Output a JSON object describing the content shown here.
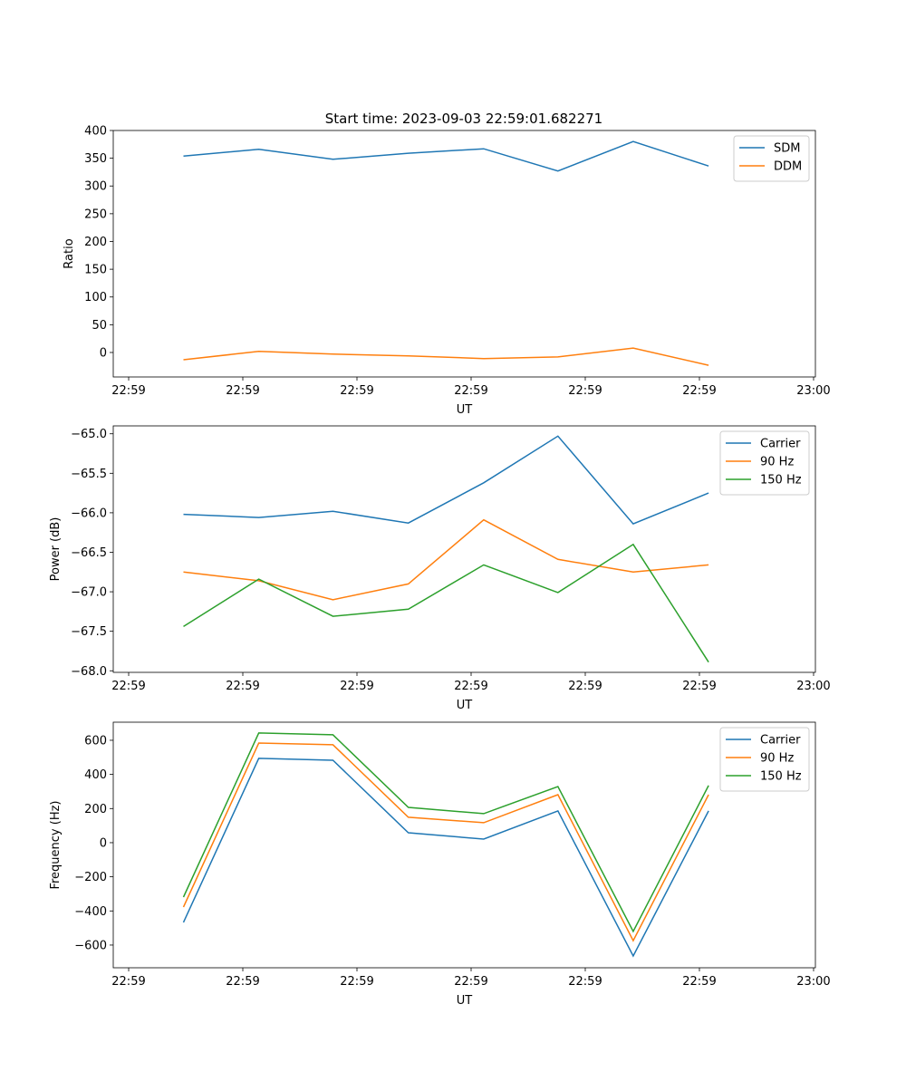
{
  "title": "Start time: 2023-09-03 22:59:01.682271",
  "colors": {
    "blue": "#1f77b4",
    "orange": "#ff7f0e",
    "green": "#2ca02c"
  },
  "chart_data": [
    {
      "type": "line",
      "xlabel": "UT",
      "ylabel": "Ratio",
      "x_unit": "seconds after 22:59:00",
      "xlim": [
        -1.35,
        60.16
      ],
      "ylim": [
        -44.1,
        400
      ],
      "xticks": [
        0,
        10,
        20,
        30,
        40,
        50,
        60
      ],
      "xtick_labels": [
        "22:59",
        "22:59",
        "22:59",
        "22:59",
        "22:59",
        "22:59",
        "23:00"
      ],
      "yticks": [
        0,
        50,
        100,
        150,
        200,
        250,
        300,
        350,
        400
      ],
      "ytick_labels": [
        "0",
        "50",
        "100",
        "150",
        "200",
        "250",
        "300",
        "350",
        "400"
      ],
      "legend": "top-right",
      "x": [
        4.8,
        11.4,
        17.9,
        24.5,
        31.1,
        37.6,
        44.2,
        50.8
      ],
      "series": [
        {
          "name": "SDM",
          "color": "#1f77b4",
          "values": [
            354,
            366,
            348,
            359,
            367,
            327,
            380,
            336
          ]
        },
        {
          "name": "DDM",
          "color": "#ff7f0e",
          "values": [
            -13,
            2,
            -3,
            -6,
            -11,
            -8,
            8,
            -23
          ]
        }
      ]
    },
    {
      "type": "line",
      "xlabel": "UT",
      "ylabel": "Power (dB)",
      "x_unit": "seconds after 22:59:00",
      "xlim": [
        -1.35,
        60.16
      ],
      "ylim": [
        -68.02,
        -64.9
      ],
      "xticks": [
        0,
        10,
        20,
        30,
        40,
        50,
        60
      ],
      "xtick_labels": [
        "22:59",
        "22:59",
        "22:59",
        "22:59",
        "22:59",
        "22:59",
        "23:00"
      ],
      "yticks": [
        -68,
        -67.5,
        -67,
        -66.5,
        -66,
        -65.5,
        -65
      ],
      "ytick_labels": [
        "−68.0",
        "−67.5",
        "−67.0",
        "−66.5",
        "−66.0",
        "−65.5",
        "−65.0"
      ],
      "legend": "top-right",
      "x": [
        4.8,
        11.4,
        17.9,
        24.5,
        31.1,
        37.6,
        44.2,
        50.8
      ],
      "series": [
        {
          "name": "Carrier",
          "color": "#1f77b4",
          "values": [
            -66.02,
            -66.06,
            -65.98,
            -66.13,
            -65.62,
            -65.03,
            -66.14,
            -65.75
          ]
        },
        {
          "name": "90 Hz",
          "color": "#ff7f0e",
          "values": [
            -66.75,
            -66.86,
            -67.1,
            -66.9,
            -66.09,
            -66.59,
            -66.75,
            -66.66
          ]
        },
        {
          "name": "150 Hz",
          "color": "#2ca02c",
          "values": [
            -67.44,
            -66.84,
            -67.31,
            -67.22,
            -66.66,
            -67.01,
            -66.4,
            -67.89
          ]
        }
      ]
    },
    {
      "type": "line",
      "xlabel": "UT",
      "ylabel": "Frequency (Hz)",
      "x_unit": "seconds after 22:59:00",
      "xlim": [
        -1.35,
        60.16
      ],
      "ylim": [
        -733,
        706
      ],
      "xticks": [
        0,
        10,
        20,
        30,
        40,
        50,
        60
      ],
      "xtick_labels": [
        "22:59",
        "22:59",
        "22:59",
        "22:59",
        "22:59",
        "22:59",
        "23:00"
      ],
      "yticks": [
        -600,
        -400,
        -200,
        0,
        200,
        400,
        600
      ],
      "ytick_labels": [
        "−600",
        "−400",
        "−200",
        "0",
        "200",
        "400",
        "600"
      ],
      "legend": "top-right",
      "x": [
        4.8,
        11.4,
        17.9,
        24.5,
        31.1,
        37.6,
        44.2,
        50.8
      ],
      "series": [
        {
          "name": "Carrier",
          "color": "#1f77b4",
          "values": [
            -467,
            494,
            483,
            58,
            21,
            186,
            -664,
            186
          ]
        },
        {
          "name": "90 Hz",
          "color": "#ff7f0e",
          "values": [
            -377,
            584,
            574,
            149,
            117,
            281,
            -574,
            281
          ]
        },
        {
          "name": "150 Hz",
          "color": "#2ca02c",
          "values": [
            -319,
            643,
            632,
            207,
            170,
            329,
            -520,
            335
          ]
        }
      ]
    }
  ]
}
